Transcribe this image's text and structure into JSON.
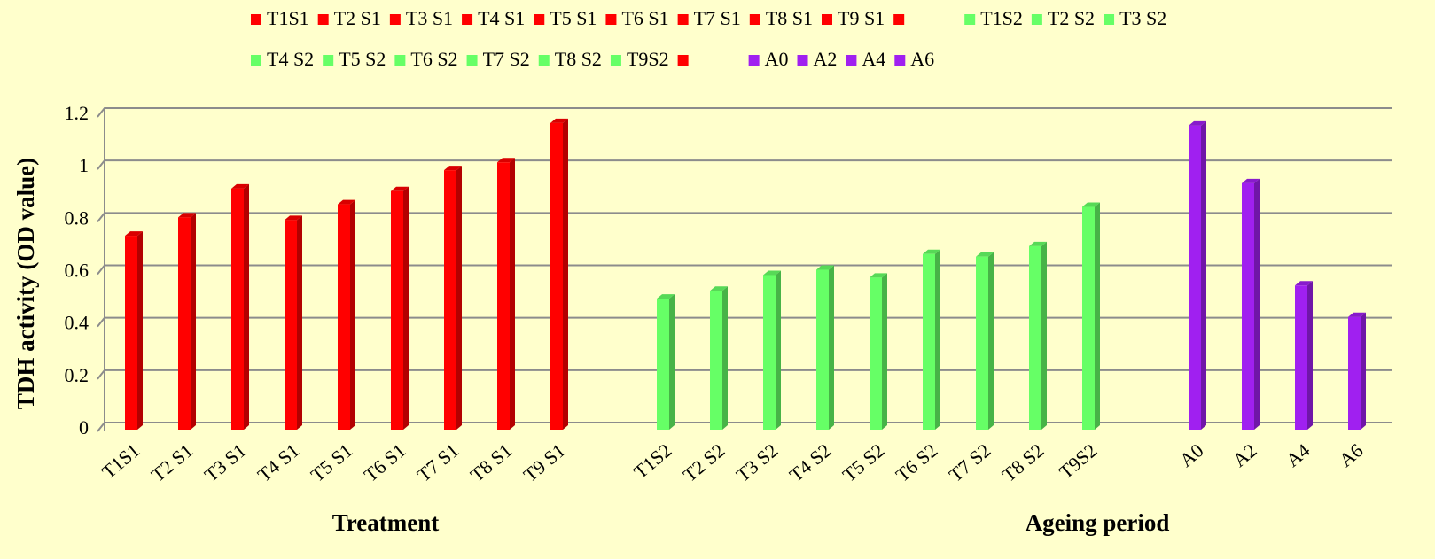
{
  "chart_data": {
    "type": "bar",
    "ylabel": "TDH activity (OD value)",
    "xlabels": [
      "Treatment",
      "Ageing period"
    ],
    "categories": [
      "T1S1",
      "T2 S1",
      "T3 S1",
      "T4 S1",
      "T5 S1",
      "T6 S1",
      "T7 S1",
      "T8 S1",
      "T9 S1",
      null,
      "T1S2",
      "T2 S2",
      "T3 S2",
      "T4 S2",
      "T5 S2",
      "T6 S2",
      "T7 S2",
      "T8 S2",
      "T9S2",
      null,
      "A0",
      "A2",
      "A4",
      "A6"
    ],
    "values": [
      0.74,
      0.81,
      0.92,
      0.8,
      0.86,
      0.91,
      0.99,
      1.02,
      1.17,
      null,
      0.5,
      0.53,
      0.59,
      0.61,
      0.58,
      0.67,
      0.66,
      0.7,
      0.85,
      null,
      1.16,
      0.94,
      0.55,
      0.43
    ],
    "colors": [
      "#ff0000",
      "#ff0000",
      "#ff0000",
      "#ff0000",
      "#ff0000",
      "#ff0000",
      "#ff0000",
      "#ff0000",
      "#ff0000",
      "#ff0000",
      "#66ff66",
      "#66ff66",
      "#66ff66",
      "#66ff66",
      "#66ff66",
      "#66ff66",
      "#66ff66",
      "#66ff66",
      "#66ff66",
      "#ff0000",
      "#a020f0",
      "#a020f0",
      "#a020f0",
      "#a020f0"
    ],
    "ylim": [
      0,
      1.2
    ],
    "yticks": [
      0,
      0.2,
      0.4,
      0.6,
      0.8,
      1,
      1.2
    ],
    "grid": true,
    "legend": "top"
  }
}
